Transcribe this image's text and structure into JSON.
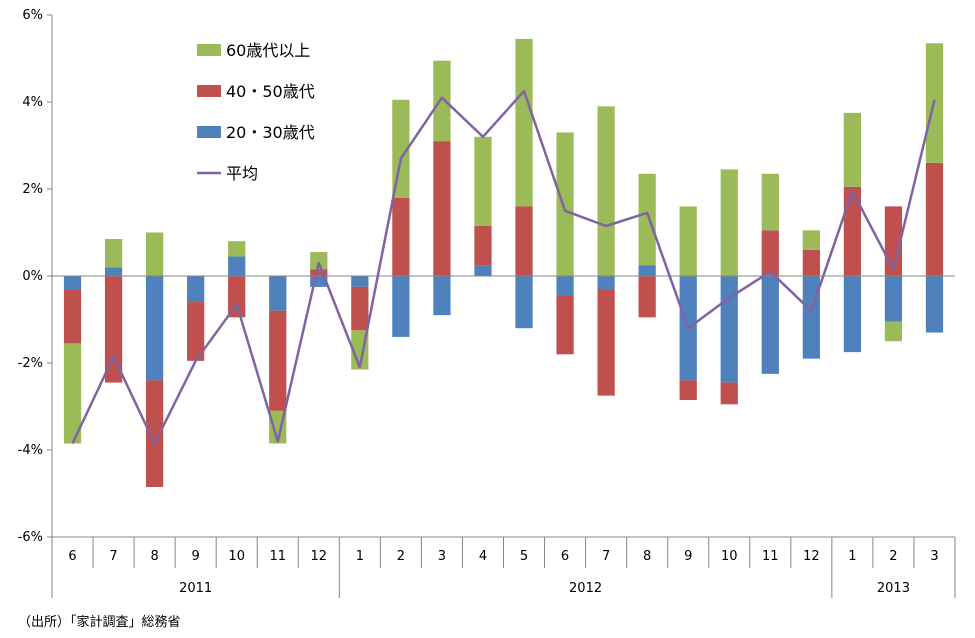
{
  "chart_data": {
    "type": "bar",
    "stacked": true,
    "categories": [
      "6",
      "7",
      "8",
      "9",
      "10",
      "11",
      "12",
      "1",
      "2",
      "3",
      "4",
      "5",
      "6",
      "7",
      "8",
      "9",
      "10",
      "11",
      "12",
      "1",
      "2",
      "3"
    ],
    "year_groups": [
      {
        "label": "2011",
        "count": 7
      },
      {
        "label": "2012",
        "count": 12
      },
      {
        "label": "2013",
        "count": 3
      }
    ],
    "series": [
      {
        "name": "20・30歳代",
        "kind": "bar",
        "color": "#4f81bd",
        "values": [
          -0.3,
          0.2,
          -2.4,
          -0.6,
          0.45,
          -0.8,
          -0.25,
          -0.25,
          -1.4,
          -0.9,
          0.25,
          -1.2,
          -0.45,
          -0.3,
          0.25,
          -2.4,
          -2.45,
          -2.25,
          -1.9,
          -1.75,
          -1.05,
          -1.3
        ]
      },
      {
        "name": "40・50歳代",
        "kind": "bar",
        "color": "#c0504d",
        "values": [
          -1.25,
          -2.45,
          -2.45,
          -1.35,
          -0.95,
          -2.3,
          0.15,
          -1.0,
          1.8,
          3.1,
          0.9,
          1.6,
          -1.35,
          -2.45,
          -0.95,
          -0.45,
          -0.5,
          1.05,
          0.6,
          2.05,
          1.6,
          2.6
        ]
      },
      {
        "name": "60歳代以上",
        "kind": "bar",
        "color": "#9bbb59",
        "values": [
          -2.3,
          0.65,
          1.0,
          0.0,
          0.35,
          -0.75,
          0.4,
          -0.9,
          2.25,
          1.85,
          2.05,
          3.85,
          3.3,
          3.9,
          2.1,
          1.6,
          2.45,
          1.3,
          0.45,
          1.7,
          -0.45,
          2.75
        ]
      },
      {
        "name": "平均",
        "kind": "line",
        "color": "#8064a2",
        "values": [
          -3.85,
          -1.85,
          -3.85,
          -1.95,
          -0.65,
          -3.8,
          0.3,
          -2.1,
          2.7,
          4.1,
          3.2,
          4.25,
          1.5,
          1.15,
          1.45,
          -1.2,
          -0.5,
          0.1,
          -0.8,
          1.95,
          0.15,
          4.05
        ]
      }
    ],
    "y_ticks": [
      "6%",
      "4%",
      "2%",
      "0%",
      "-2%",
      "-4%",
      "-6%"
    ],
    "ylim": [
      -6,
      6
    ],
    "grid": false,
    "legend_position": "top-left",
    "source": "（出所）「家計調査」総務省"
  }
}
